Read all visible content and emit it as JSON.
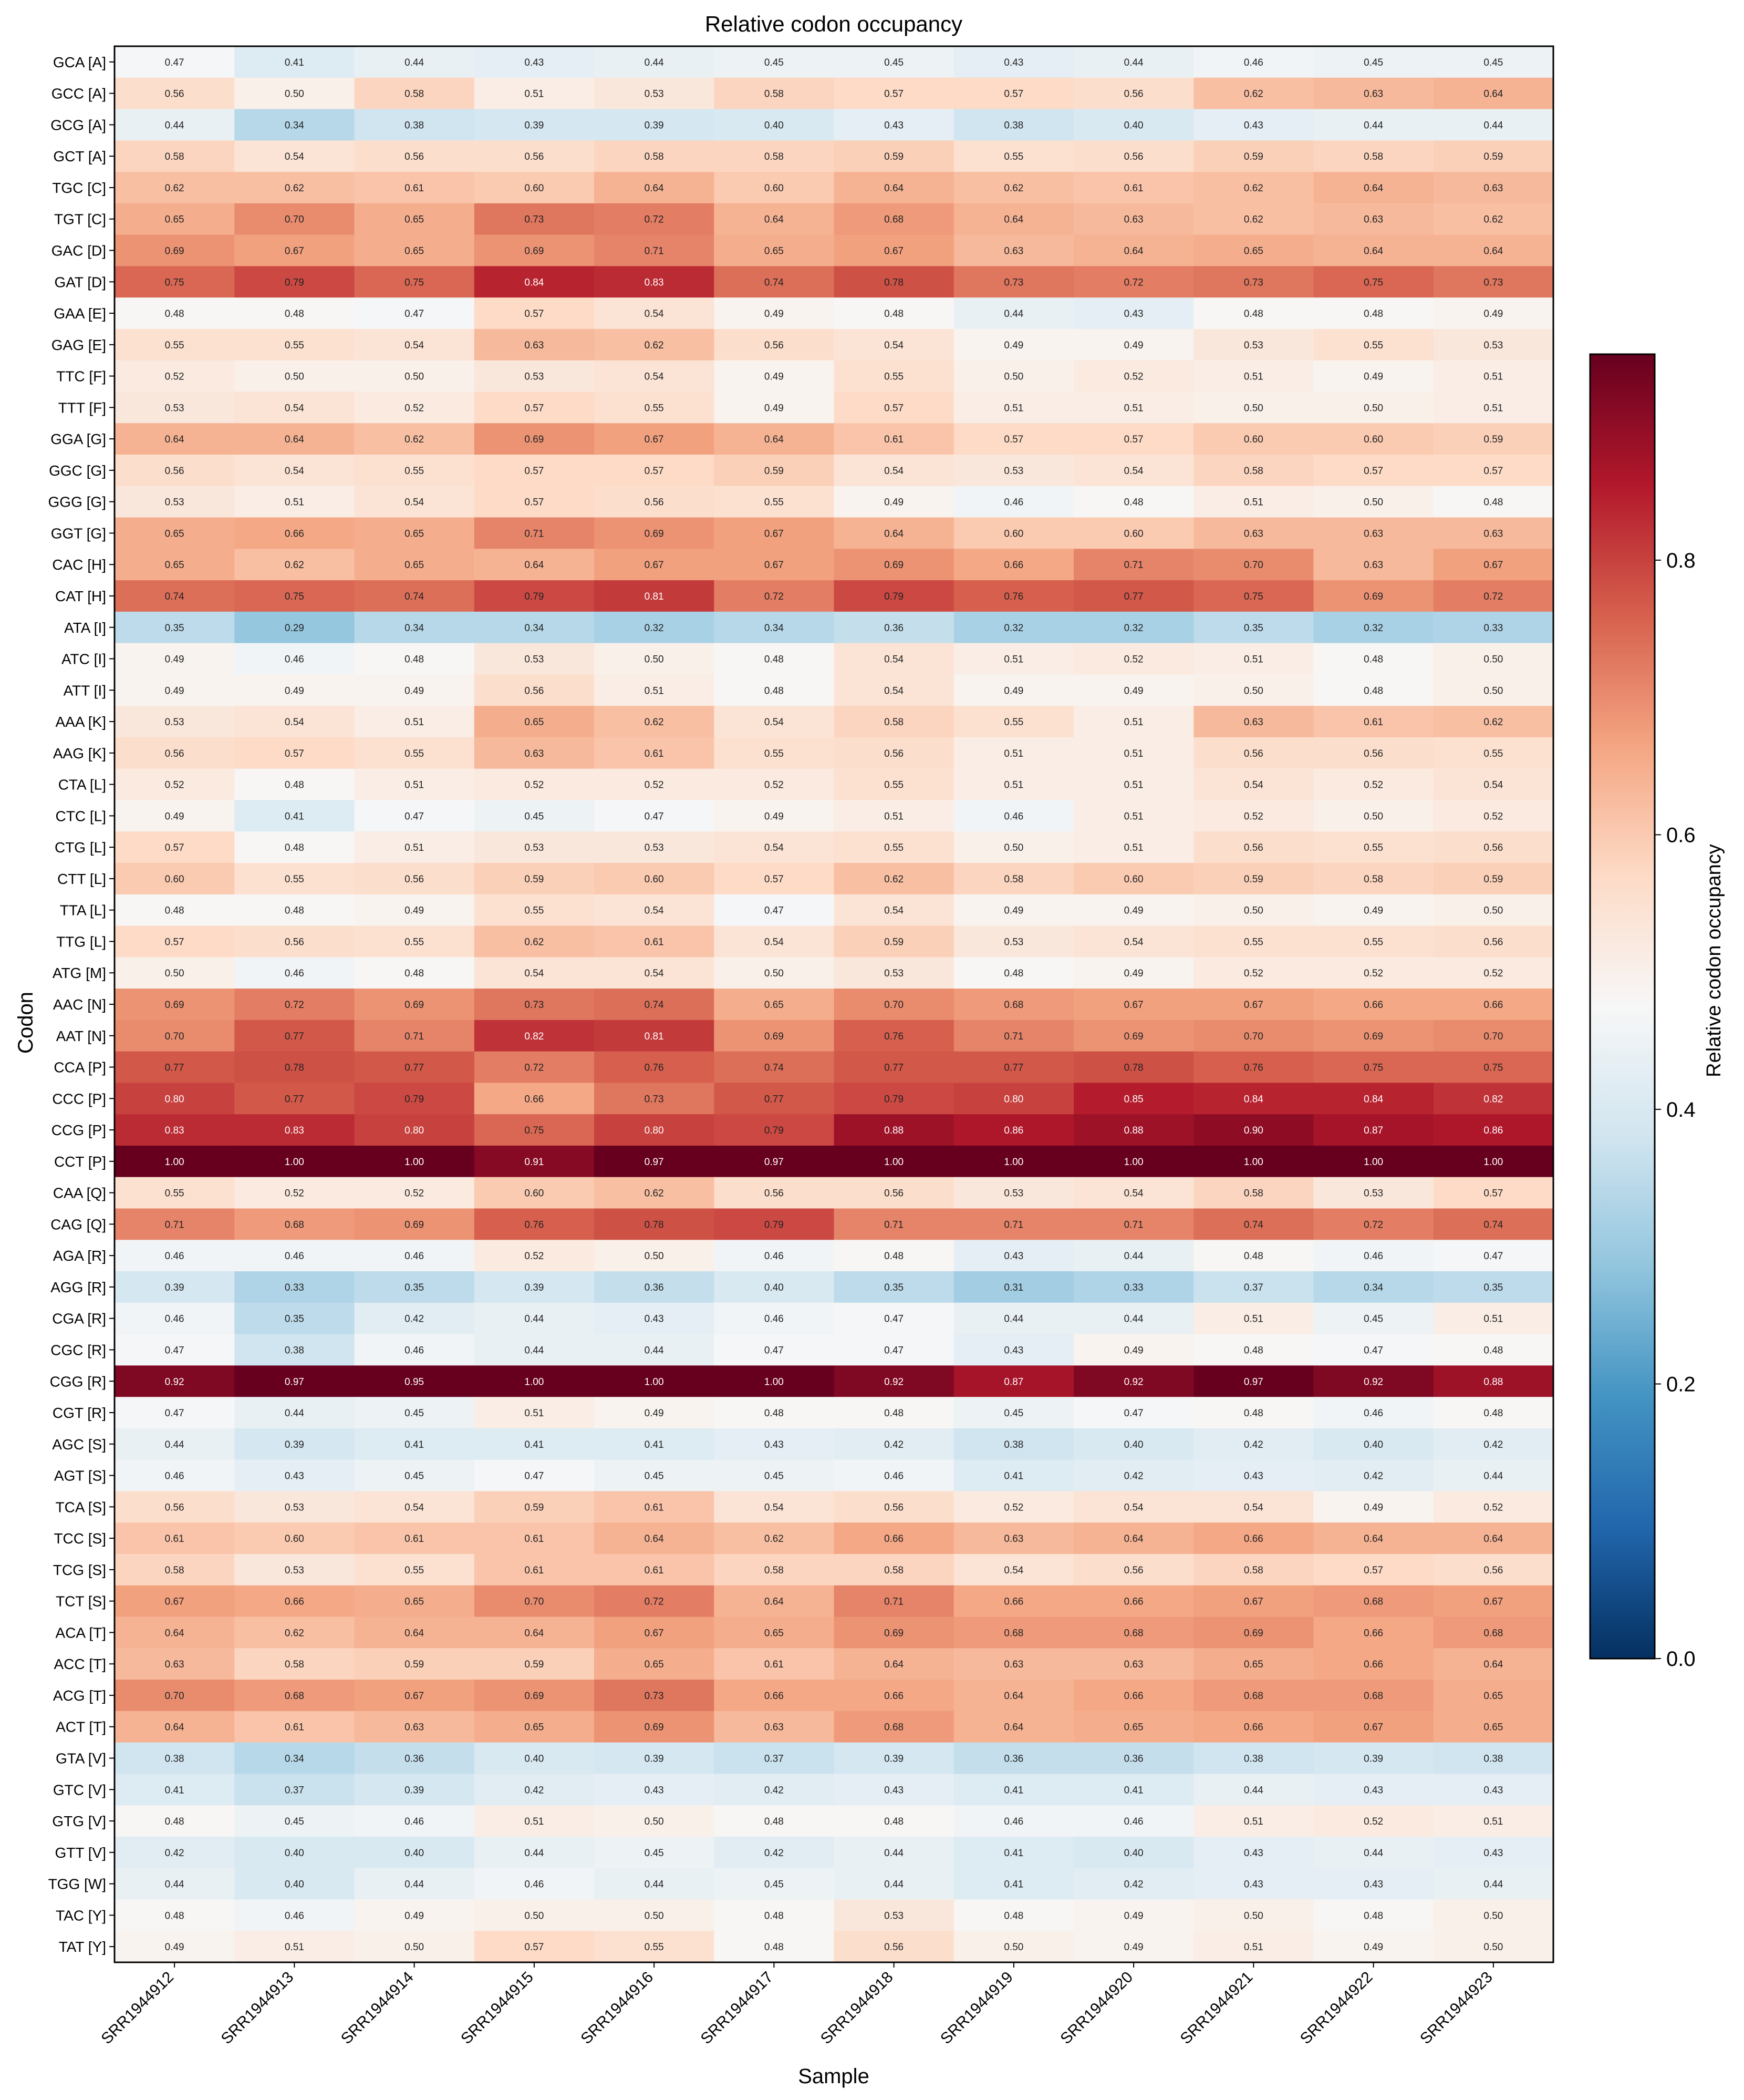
{
  "chart_data": {
    "type": "heatmap",
    "title": "Relative codon occupancy",
    "xlabel": "Sample",
    "ylabel": "Codon",
    "colorbar_label": "Relative codon occupancy",
    "colorbar_range": [
      0.0,
      0.95
    ],
    "colorbar_ticks": [
      {
        "value": 0.0,
        "label": "0.0"
      },
      {
        "value": 0.2,
        "label": "0.2"
      },
      {
        "value": 0.4,
        "label": "0.4"
      },
      {
        "value": 0.6,
        "label": "0.6"
      },
      {
        "value": 0.8,
        "label": "0.8"
      }
    ],
    "colormap": "RdBu_r",
    "value_format": "2 decimals",
    "grid": false,
    "columns": [
      "SRR1944912",
      "SRR1944913",
      "SRR1944914",
      "SRR1944915",
      "SRR1944916",
      "SRR1944917",
      "SRR1944918",
      "SRR1944919",
      "SRR1944920",
      "SRR1944921",
      "SRR1944922",
      "SRR1944923"
    ],
    "rows": [
      "GCA [A]",
      "GCC [A]",
      "GCG [A]",
      "GCT [A]",
      "TGC [C]",
      "TGT [C]",
      "GAC [D]",
      "GAT [D]",
      "GAA [E]",
      "GAG [E]",
      "TTC [F]",
      "TTT [F]",
      "GGA [G]",
      "GGC [G]",
      "GGG [G]",
      "GGT [G]",
      "CAC [H]",
      "CAT [H]",
      "ATA [I]",
      "ATC [I]",
      "ATT [I]",
      "AAA [K]",
      "AAG [K]",
      "CTA [L]",
      "CTC [L]",
      "CTG [L]",
      "CTT [L]",
      "TTA [L]",
      "TTG [L]",
      "ATG [M]",
      "AAC [N]",
      "AAT [N]",
      "CCA [P]",
      "CCC [P]",
      "CCG [P]",
      "CCT [P]",
      "CAA [Q]",
      "CAG [Q]",
      "AGA [R]",
      "AGG [R]",
      "CGA [R]",
      "CGC [R]",
      "CGG [R]",
      "CGT [R]",
      "AGC [S]",
      "AGT [S]",
      "TCA [S]",
      "TCC [S]",
      "TCG [S]",
      "TCT [S]",
      "ACA [T]",
      "ACC [T]",
      "ACG [T]",
      "ACT [T]",
      "GTA [V]",
      "GTC [V]",
      "GTG [V]",
      "GTT [V]",
      "TGG [W]",
      "TAC [Y]",
      "TAT [Y]"
    ],
    "values": [
      [
        0.47,
        0.41,
        0.44,
        0.43,
        0.44,
        0.45,
        0.45,
        0.43,
        0.44,
        0.46,
        0.45,
        0.45
      ],
      [
        0.56,
        0.5,
        0.58,
        0.51,
        0.53,
        0.58,
        0.57,
        0.57,
        0.56,
        0.62,
        0.63,
        0.64
      ],
      [
        0.44,
        0.34,
        0.38,
        0.39,
        0.39,
        0.4,
        0.43,
        0.38,
        0.4,
        0.43,
        0.44,
        0.44
      ],
      [
        0.58,
        0.54,
        0.56,
        0.56,
        0.58,
        0.58,
        0.59,
        0.55,
        0.56,
        0.59,
        0.58,
        0.59
      ],
      [
        0.62,
        0.62,
        0.61,
        0.6,
        0.64,
        0.6,
        0.64,
        0.62,
        0.61,
        0.62,
        0.64,
        0.63
      ],
      [
        0.65,
        0.7,
        0.65,
        0.73,
        0.72,
        0.64,
        0.68,
        0.64,
        0.63,
        0.62,
        0.63,
        0.62
      ],
      [
        0.69,
        0.67,
        0.65,
        0.69,
        0.71,
        0.65,
        0.67,
        0.63,
        0.64,
        0.65,
        0.64,
        0.64
      ],
      [
        0.75,
        0.79,
        0.75,
        0.84,
        0.83,
        0.74,
        0.78,
        0.73,
        0.72,
        0.73,
        0.75,
        0.73
      ],
      [
        0.48,
        0.48,
        0.47,
        0.57,
        0.54,
        0.49,
        0.48,
        0.44,
        0.43,
        0.48,
        0.48,
        0.49
      ],
      [
        0.55,
        0.55,
        0.54,
        0.63,
        0.62,
        0.56,
        0.54,
        0.49,
        0.49,
        0.53,
        0.55,
        0.53
      ],
      [
        0.52,
        0.5,
        0.5,
        0.53,
        0.54,
        0.49,
        0.55,
        0.5,
        0.52,
        0.51,
        0.49,
        0.51
      ],
      [
        0.53,
        0.54,
        0.52,
        0.57,
        0.55,
        0.49,
        0.57,
        0.51,
        0.51,
        0.5,
        0.5,
        0.51
      ],
      [
        0.64,
        0.64,
        0.62,
        0.69,
        0.67,
        0.64,
        0.61,
        0.57,
        0.57,
        0.6,
        0.6,
        0.59
      ],
      [
        0.56,
        0.54,
        0.55,
        0.57,
        0.57,
        0.59,
        0.54,
        0.53,
        0.54,
        0.58,
        0.57,
        0.57
      ],
      [
        0.53,
        0.51,
        0.54,
        0.57,
        0.56,
        0.55,
        0.49,
        0.46,
        0.48,
        0.51,
        0.5,
        0.48
      ],
      [
        0.65,
        0.66,
        0.65,
        0.71,
        0.69,
        0.67,
        0.64,
        0.6,
        0.6,
        0.63,
        0.63,
        0.63
      ],
      [
        0.65,
        0.62,
        0.65,
        0.64,
        0.67,
        0.67,
        0.69,
        0.66,
        0.71,
        0.7,
        0.63,
        0.67
      ],
      [
        0.74,
        0.75,
        0.74,
        0.79,
        0.81,
        0.72,
        0.79,
        0.76,
        0.77,
        0.75,
        0.69,
        0.72
      ],
      [
        0.35,
        0.29,
        0.34,
        0.34,
        0.32,
        0.34,
        0.36,
        0.32,
        0.32,
        0.35,
        0.32,
        0.33
      ],
      [
        0.49,
        0.46,
        0.48,
        0.53,
        0.5,
        0.48,
        0.54,
        0.51,
        0.52,
        0.51,
        0.48,
        0.5
      ],
      [
        0.49,
        0.49,
        0.49,
        0.56,
        0.51,
        0.48,
        0.54,
        0.49,
        0.49,
        0.5,
        0.48,
        0.5
      ],
      [
        0.53,
        0.54,
        0.51,
        0.65,
        0.62,
        0.54,
        0.58,
        0.55,
        0.51,
        0.63,
        0.61,
        0.62
      ],
      [
        0.56,
        0.57,
        0.55,
        0.63,
        0.61,
        0.55,
        0.56,
        0.51,
        0.51,
        0.56,
        0.56,
        0.55
      ],
      [
        0.52,
        0.48,
        0.51,
        0.52,
        0.52,
        0.52,
        0.55,
        0.51,
        0.51,
        0.54,
        0.52,
        0.54
      ],
      [
        0.49,
        0.41,
        0.47,
        0.45,
        0.47,
        0.49,
        0.51,
        0.46,
        0.51,
        0.52,
        0.5,
        0.52
      ],
      [
        0.57,
        0.48,
        0.51,
        0.53,
        0.53,
        0.54,
        0.55,
        0.5,
        0.51,
        0.56,
        0.55,
        0.56
      ],
      [
        0.6,
        0.55,
        0.56,
        0.59,
        0.6,
        0.57,
        0.62,
        0.58,
        0.6,
        0.59,
        0.58,
        0.59
      ],
      [
        0.48,
        0.48,
        0.49,
        0.55,
        0.54,
        0.47,
        0.54,
        0.49,
        0.49,
        0.5,
        0.49,
        0.5
      ],
      [
        0.57,
        0.56,
        0.55,
        0.62,
        0.61,
        0.54,
        0.59,
        0.53,
        0.54,
        0.55,
        0.55,
        0.56
      ],
      [
        0.5,
        0.46,
        0.48,
        0.54,
        0.54,
        0.5,
        0.53,
        0.48,
        0.49,
        0.52,
        0.52,
        0.52
      ],
      [
        0.69,
        0.72,
        0.69,
        0.73,
        0.74,
        0.65,
        0.7,
        0.68,
        0.67,
        0.67,
        0.66,
        0.66
      ],
      [
        0.7,
        0.77,
        0.71,
        0.82,
        0.81,
        0.69,
        0.76,
        0.71,
        0.69,
        0.7,
        0.69,
        0.7
      ],
      [
        0.77,
        0.78,
        0.77,
        0.72,
        0.76,
        0.74,
        0.77,
        0.77,
        0.78,
        0.76,
        0.75,
        0.75
      ],
      [
        0.8,
        0.77,
        0.79,
        0.66,
        0.73,
        0.77,
        0.79,
        0.8,
        0.85,
        0.84,
        0.84,
        0.82
      ],
      [
        0.83,
        0.83,
        0.8,
        0.75,
        0.8,
        0.79,
        0.88,
        0.86,
        0.88,
        0.9,
        0.87,
        0.86
      ],
      [
        1.0,
        1.0,
        1.0,
        0.91,
        0.97,
        0.97,
        1.0,
        1.0,
        1.0,
        1.0,
        1.0,
        1.0
      ],
      [
        0.55,
        0.52,
        0.52,
        0.6,
        0.62,
        0.56,
        0.56,
        0.53,
        0.54,
        0.58,
        0.53,
        0.57
      ],
      [
        0.71,
        0.68,
        0.69,
        0.76,
        0.78,
        0.79,
        0.71,
        0.71,
        0.71,
        0.74,
        0.72,
        0.74
      ],
      [
        0.46,
        0.46,
        0.46,
        0.52,
        0.5,
        0.46,
        0.48,
        0.43,
        0.44,
        0.48,
        0.46,
        0.47
      ],
      [
        0.39,
        0.33,
        0.35,
        0.39,
        0.36,
        0.4,
        0.35,
        0.31,
        0.33,
        0.37,
        0.34,
        0.35
      ],
      [
        0.46,
        0.35,
        0.42,
        0.44,
        0.43,
        0.46,
        0.47,
        0.44,
        0.44,
        0.51,
        0.45,
        0.51
      ],
      [
        0.47,
        0.38,
        0.46,
        0.44,
        0.44,
        0.47,
        0.47,
        0.43,
        0.49,
        0.48,
        0.47,
        0.48
      ],
      [
        0.92,
        0.97,
        0.95,
        1.0,
        1.0,
        1.0,
        0.92,
        0.87,
        0.92,
        0.97,
        0.92,
        0.88
      ],
      [
        0.47,
        0.44,
        0.45,
        0.51,
        0.49,
        0.48,
        0.48,
        0.45,
        0.47,
        0.48,
        0.46,
        0.48
      ],
      [
        0.44,
        0.39,
        0.41,
        0.41,
        0.41,
        0.43,
        0.42,
        0.38,
        0.4,
        0.42,
        0.4,
        0.42
      ],
      [
        0.46,
        0.43,
        0.45,
        0.47,
        0.45,
        0.45,
        0.46,
        0.41,
        0.42,
        0.43,
        0.42,
        0.44
      ],
      [
        0.56,
        0.53,
        0.54,
        0.59,
        0.61,
        0.54,
        0.56,
        0.52,
        0.54,
        0.54,
        0.49,
        0.52
      ],
      [
        0.61,
        0.6,
        0.61,
        0.61,
        0.64,
        0.62,
        0.66,
        0.63,
        0.64,
        0.66,
        0.64,
        0.64
      ],
      [
        0.58,
        0.53,
        0.55,
        0.61,
        0.61,
        0.58,
        0.58,
        0.54,
        0.56,
        0.58,
        0.57,
        0.56
      ],
      [
        0.67,
        0.66,
        0.65,
        0.7,
        0.72,
        0.64,
        0.71,
        0.66,
        0.66,
        0.67,
        0.68,
        0.67
      ],
      [
        0.64,
        0.62,
        0.64,
        0.64,
        0.67,
        0.65,
        0.69,
        0.68,
        0.68,
        0.69,
        0.66,
        0.68
      ],
      [
        0.63,
        0.58,
        0.59,
        0.59,
        0.65,
        0.61,
        0.64,
        0.63,
        0.63,
        0.65,
        0.66,
        0.64
      ],
      [
        0.7,
        0.68,
        0.67,
        0.69,
        0.73,
        0.66,
        0.66,
        0.64,
        0.66,
        0.68,
        0.68,
        0.65
      ],
      [
        0.64,
        0.61,
        0.63,
        0.65,
        0.69,
        0.63,
        0.68,
        0.64,
        0.65,
        0.66,
        0.67,
        0.65
      ],
      [
        0.38,
        0.34,
        0.36,
        0.4,
        0.39,
        0.37,
        0.39,
        0.36,
        0.36,
        0.38,
        0.39,
        0.38
      ],
      [
        0.41,
        0.37,
        0.39,
        0.42,
        0.43,
        0.42,
        0.43,
        0.41,
        0.41,
        0.44,
        0.43,
        0.43
      ],
      [
        0.48,
        0.45,
        0.46,
        0.51,
        0.5,
        0.48,
        0.48,
        0.46,
        0.46,
        0.51,
        0.52,
        0.51
      ],
      [
        0.42,
        0.4,
        0.4,
        0.44,
        0.45,
        0.42,
        0.44,
        0.41,
        0.4,
        0.43,
        0.44,
        0.43
      ],
      [
        0.44,
        0.4,
        0.44,
        0.46,
        0.44,
        0.45,
        0.44,
        0.41,
        0.42,
        0.43,
        0.43,
        0.44
      ],
      [
        0.48,
        0.46,
        0.49,
        0.5,
        0.5,
        0.48,
        0.53,
        0.48,
        0.49,
        0.5,
        0.48,
        0.5
      ],
      [
        0.49,
        0.51,
        0.5,
        0.57,
        0.55,
        0.48,
        0.56,
        0.5,
        0.49,
        0.51,
        0.49,
        0.5
      ]
    ]
  }
}
